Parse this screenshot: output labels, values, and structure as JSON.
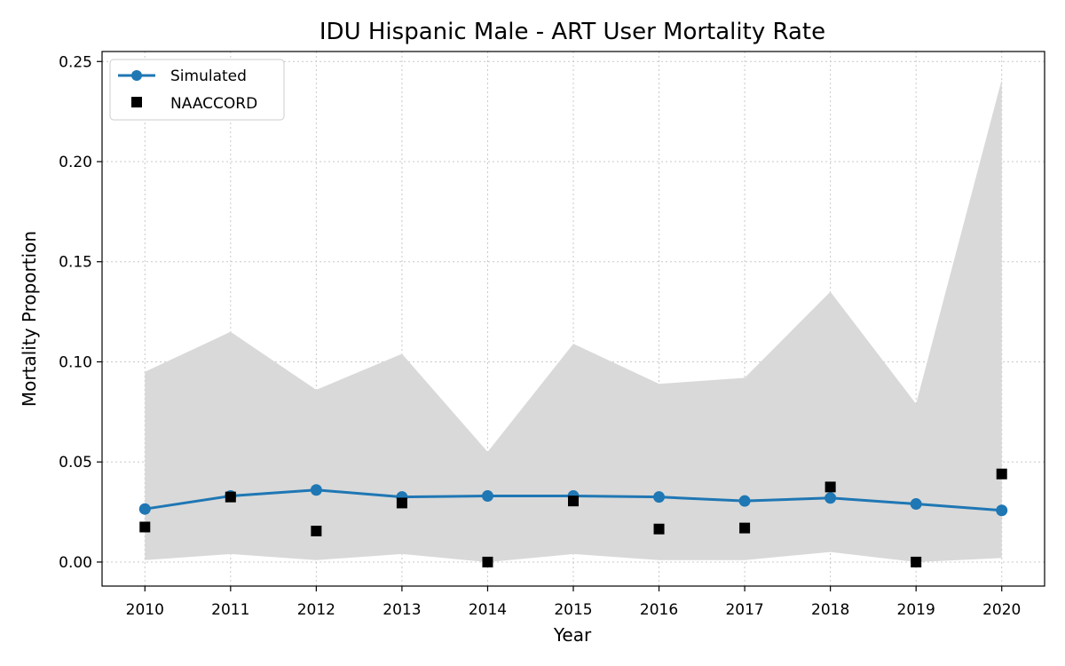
{
  "chart_data": {
    "type": "line",
    "title": "IDU Hispanic Male - ART User Mortality Rate",
    "xlabel": "Year",
    "ylabel": "Mortality Proportion",
    "x": [
      2010,
      2011,
      2012,
      2013,
      2014,
      2015,
      2016,
      2017,
      2018,
      2019,
      2020
    ],
    "xlim": [
      2009.5,
      2020.5
    ],
    "ylim": [
      -0.012,
      0.255
    ],
    "yticks": [
      0.0,
      0.05,
      0.1,
      0.15,
      0.2,
      0.25
    ],
    "ytick_labels": [
      "0.00",
      "0.05",
      "0.10",
      "0.15",
      "0.20",
      "0.25"
    ],
    "grid": true,
    "legend_position": "top-left",
    "band": {
      "lower": [
        0.001,
        0.004,
        0.001,
        0.004,
        0.0,
        0.004,
        0.001,
        0.001,
        0.005,
        0.0,
        0.002
      ],
      "upper": [
        0.095,
        0.115,
        0.086,
        0.104,
        0.055,
        0.109,
        0.089,
        0.092,
        0.135,
        0.079,
        0.241
      ],
      "color": "#d9d9d9"
    },
    "series": [
      {
        "name": "Simulated",
        "marker": "circle",
        "color": "#1f77b4",
        "values": [
          0.0265,
          0.033,
          0.036,
          0.0325,
          0.033,
          0.033,
          0.0325,
          0.0305,
          0.032,
          0.029,
          0.0258
        ]
      },
      {
        "name": "NAACCORD",
        "marker": "square",
        "color": "#000000",
        "values": [
          0.0175,
          0.0325,
          0.0155,
          0.0295,
          0.0,
          0.0305,
          0.0165,
          0.017,
          0.0375,
          0.0,
          0.044
        ]
      }
    ]
  }
}
